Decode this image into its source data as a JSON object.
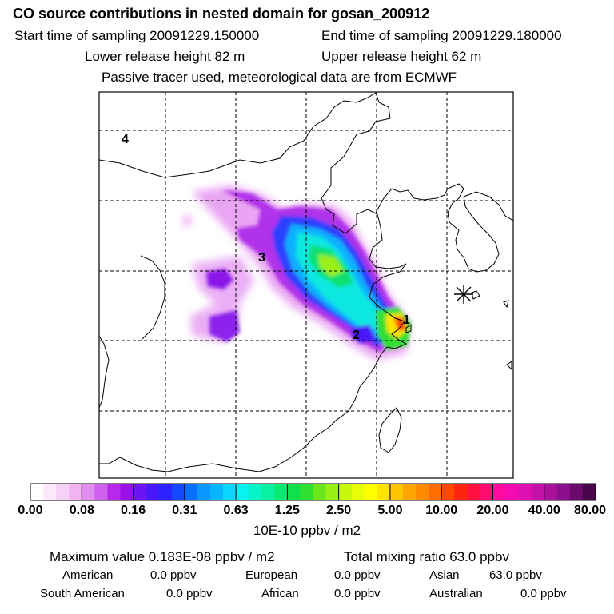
{
  "header": {
    "title": "CO  source contributions in nested domain for gosan_200912",
    "start_label": "Start time of sampling 20091229.150000",
    "end_label": "End time of sampling 20091229.180000",
    "lower_label": "Lower release height   82 m",
    "upper_label": "Upper release height   62 m",
    "note": "Passive tracer used, meteorological data are from ECMWF"
  },
  "map": {
    "region_labels": [
      "1",
      "2",
      "3",
      "4"
    ],
    "receptor_marker": "asterisk"
  },
  "colorbar": {
    "tick_labels": [
      "0.00",
      "0.08",
      "0.16",
      "0.31",
      "0.63",
      "1.25",
      "2.50",
      "5.00",
      "10.00",
      "20.00",
      "40.00",
      "80.00"
    ],
    "unit_label": "10E-10 ppbv / m2",
    "colors": [
      "#ffffff",
      "#fbe8fb",
      "#f6d0f6",
      "#f0b4f2",
      "#e08ef0",
      "#d060ee",
      "#b828ea",
      "#9a10e8",
      "#6d12f0",
      "#4818f8",
      "#2a22ff",
      "#1448ff",
      "#0a70ff",
      "#0898ff",
      "#08b6ff",
      "#0ad6ff",
      "#08f2f2",
      "#08f4c8",
      "#08f0a0",
      "#08ea72",
      "#10e04a",
      "#30e030",
      "#6ae81c",
      "#9af014",
      "#c6f80c",
      "#e8ff08",
      "#ffff00",
      "#ffe400",
      "#ffc400",
      "#ffa400",
      "#ff8a00",
      "#ff6e00",
      "#ff4800",
      "#ff2410",
      "#ff1040",
      "#ff0c70",
      "#ff0aa0",
      "#f40cb0",
      "#de10b2",
      "#c412a8",
      "#a8129c",
      "#8c0e8c",
      "#6c0a6c",
      "#4a064a"
    ]
  },
  "stats": {
    "max_label": "Maximum value  0.183E-08 ppbv / m2",
    "total_label": "Total mixing ratio      63.0 ppbv",
    "american_label": "American",
    "american_value": "0.0 ppbv",
    "european_label": "European",
    "european_value": "0.0 ppbv",
    "asian_label": "Asian",
    "asian_value": "63.0 ppbv",
    "south_american_label": "South American",
    "south_american_value": "0.0 ppbv",
    "african_label": "African",
    "african_value": "0.0 ppbv",
    "australian_label": "Australian",
    "australian_value": "0.0 ppbv"
  }
}
